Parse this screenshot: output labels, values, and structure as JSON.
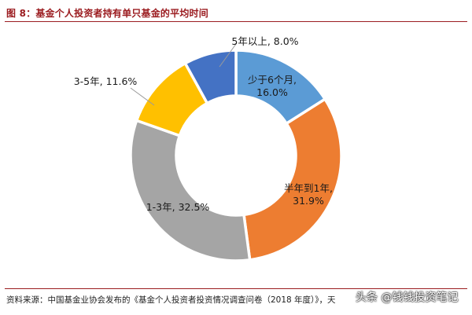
{
  "figure": {
    "title": "图 8：基金个人投资者持有单只基金的平均时间",
    "source": "资料来源：中国基金业协会发布的《基金个人投资者投资情况调查问卷（2018 年度）》，天",
    "watermark": "头条 @钱钱投资笔记"
  },
  "chart_data": {
    "type": "pie",
    "title": "图 8：基金个人投资者持有单只基金的平均时间",
    "donut": true,
    "unit": "%",
    "slices": [
      {
        "label": "少于6个月",
        "value": 16.0,
        "color": "#5b9bd5",
        "text": [
          "少于6个月,",
          "16.0%"
        ]
      },
      {
        "label": "半年到1年",
        "value": 31.9,
        "color": "#ed7d31",
        "text": [
          "半年到1年,",
          "31.9%"
        ]
      },
      {
        "label": "1-3年",
        "value": 32.5,
        "color": "#a5a5a5",
        "text": [
          "1-3年, 32.5%"
        ]
      },
      {
        "label": "3-5年",
        "value": 11.6,
        "color": "#ffc000",
        "text": [
          "3-5年, 11.6%"
        ]
      },
      {
        "label": "5年以上",
        "value": 8.0,
        "color": "#4472c4",
        "text": [
          "5年以上, 8.0%"
        ]
      }
    ]
  }
}
